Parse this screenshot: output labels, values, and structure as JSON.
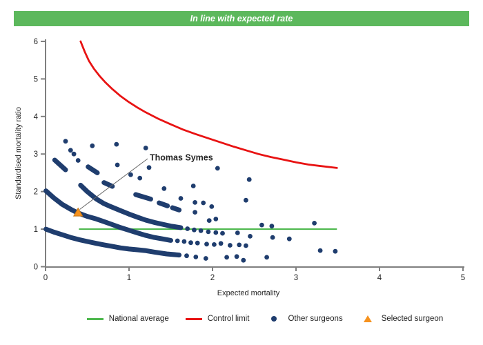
{
  "colors": {
    "banner_green": "#5cb85c",
    "green": "#4db84d",
    "red": "#e81313",
    "navy": "#1f3d6e",
    "orange": "#f6921e",
    "orange_border": "#c47413",
    "axis_gray": "#7f7f7f",
    "annotation_line": "#666666"
  },
  "legend": {
    "items": [
      {
        "label": "National average",
        "marker": "line",
        "color_key": "green"
      },
      {
        "label": "Control limit",
        "marker": "line",
        "color_key": "red"
      },
      {
        "label": "Other surgeons",
        "marker": "dot",
        "color_key": "navy"
      },
      {
        "label": "Selected surgeon",
        "marker": "triangle",
        "color_key": "orange"
      }
    ]
  },
  "chart_data": {
    "type": "scatter",
    "title": "In line with expected rate",
    "xlabel": "Expected mortality",
    "ylabel": "Standardised mortality ratio",
    "xlim": [
      0,
      5
    ],
    "ylim": [
      0,
      6
    ],
    "grid": false,
    "x_ticks": [
      "0",
      "1",
      "2",
      "3",
      "4",
      "5"
    ],
    "y_ticks": [
      "0",
      "1",
      "2",
      "3",
      "4",
      "5",
      "6"
    ],
    "national_average": {
      "y": 1.0,
      "x_start": 0.4,
      "x_end": 3.49
    },
    "control_limit": {
      "points": [
        [
          0.42,
          6.0
        ],
        [
          0.47,
          5.72
        ],
        [
          0.52,
          5.48
        ],
        [
          0.58,
          5.27
        ],
        [
          0.65,
          5.07
        ],
        [
          0.72,
          4.9
        ],
        [
          0.8,
          4.73
        ],
        [
          0.9,
          4.54
        ],
        [
          1.0,
          4.38
        ],
        [
          1.1,
          4.24
        ],
        [
          1.2,
          4.11
        ],
        [
          1.35,
          3.94
        ],
        [
          1.5,
          3.79
        ],
        [
          1.65,
          3.65
        ],
        [
          1.8,
          3.53
        ],
        [
          1.95,
          3.42
        ],
        [
          2.1,
          3.31
        ],
        [
          2.25,
          3.2
        ],
        [
          2.4,
          3.1
        ],
        [
          2.55,
          3.0
        ],
        [
          2.7,
          2.92
        ],
        [
          2.85,
          2.85
        ],
        [
          3.0,
          2.78
        ],
        [
          3.15,
          2.72
        ],
        [
          3.3,
          2.68
        ],
        [
          3.49,
          2.63
        ]
      ]
    },
    "surgeon_bands": [
      {
        "name": "band-upper",
        "points": [
          [
            0.42,
            2.17
          ],
          [
            0.5,
            2.0
          ],
          [
            0.61,
            1.8
          ],
          [
            0.7,
            1.68
          ],
          [
            0.78,
            1.6
          ],
          [
            0.9,
            1.49
          ],
          [
            1.0,
            1.4
          ],
          [
            1.11,
            1.31
          ],
          [
            1.2,
            1.24
          ],
          [
            1.3,
            1.18
          ],
          [
            1.4,
            1.13
          ],
          [
            1.5,
            1.08
          ],
          [
            1.62,
            1.04
          ]
        ]
      },
      {
        "name": "band-middle",
        "points": [
          [
            0.005,
            2.02
          ],
          [
            0.1,
            1.83
          ],
          [
            0.2,
            1.66
          ],
          [
            0.3,
            1.53
          ],
          [
            0.39,
            1.43
          ],
          [
            0.5,
            1.34
          ],
          [
            0.61,
            1.27
          ],
          [
            0.7,
            1.2
          ],
          [
            0.8,
            1.12
          ],
          [
            0.9,
            1.04
          ],
          [
            1.0,
            0.97
          ],
          [
            1.1,
            0.9
          ],
          [
            1.19,
            0.84
          ],
          [
            1.3,
            0.78
          ],
          [
            1.4,
            0.74
          ],
          [
            1.5,
            0.7
          ]
        ]
      },
      {
        "name": "band-lower",
        "points": [
          [
            0.005,
            1.0
          ],
          [
            0.1,
            0.92
          ],
          [
            0.2,
            0.85
          ],
          [
            0.3,
            0.78
          ],
          [
            0.4,
            0.72
          ],
          [
            0.5,
            0.67
          ],
          [
            0.61,
            0.62
          ],
          [
            0.7,
            0.58
          ],
          [
            0.8,
            0.54
          ],
          [
            0.9,
            0.5
          ],
          [
            1.0,
            0.47
          ],
          [
            1.1,
            0.45
          ],
          [
            1.19,
            0.43
          ],
          [
            1.3,
            0.39
          ],
          [
            1.45,
            0.34
          ],
          [
            1.6,
            0.31
          ]
        ]
      }
    ],
    "band_dashes": [
      [
        0.11,
        2.84,
        0.24,
        2.58
      ],
      [
        0.51,
        2.66,
        0.62,
        2.5
      ],
      [
        0.7,
        2.24,
        0.8,
        2.14
      ],
      [
        1.08,
        1.92,
        1.26,
        1.8
      ],
      [
        1.36,
        1.7,
        1.46,
        1.62
      ],
      [
        1.52,
        1.57,
        1.6,
        1.51
      ]
    ],
    "other_surgeons": [
      [
        0.24,
        3.34
      ],
      [
        0.3,
        3.1
      ],
      [
        0.34,
        3.0
      ],
      [
        0.39,
        2.83
      ],
      [
        0.56,
        3.22
      ],
      [
        0.85,
        3.26
      ],
      [
        1.2,
        3.16
      ],
      [
        0.86,
        2.71
      ],
      [
        1.02,
        2.45
      ],
      [
        1.13,
        2.36
      ],
      [
        1.24,
        2.64
      ],
      [
        1.42,
        2.08
      ],
      [
        1.77,
        2.15
      ],
      [
        2.06,
        2.62
      ],
      [
        2.44,
        2.32
      ],
      [
        1.62,
        1.82
      ],
      [
        1.79,
        1.71
      ],
      [
        1.89,
        1.7
      ],
      [
        1.99,
        1.6
      ],
      [
        2.4,
        1.77
      ],
      [
        1.79,
        1.45
      ],
      [
        1.96,
        1.23
      ],
      [
        2.04,
        1.27
      ],
      [
        2.59,
        1.11
      ],
      [
        2.71,
        1.08
      ],
      [
        3.22,
        1.16
      ],
      [
        1.7,
        1.01
      ],
      [
        1.78,
        0.98
      ],
      [
        1.86,
        0.96
      ],
      [
        1.95,
        0.93
      ],
      [
        2.04,
        0.91
      ],
      [
        2.12,
        0.89
      ],
      [
        2.3,
        0.9
      ],
      [
        2.45,
        0.81
      ],
      [
        2.72,
        0.78
      ],
      [
        2.92,
        0.74
      ],
      [
        1.58,
        0.69
      ],
      [
        1.66,
        0.67
      ],
      [
        1.74,
        0.64
      ],
      [
        1.82,
        0.63
      ],
      [
        1.93,
        0.6
      ],
      [
        2.02,
        0.59
      ],
      [
        2.1,
        0.62
      ],
      [
        2.21,
        0.57
      ],
      [
        2.32,
        0.58
      ],
      [
        2.4,
        0.56
      ],
      [
        1.69,
        0.29
      ],
      [
        1.8,
        0.26
      ],
      [
        1.92,
        0.22
      ],
      [
        2.17,
        0.25
      ],
      [
        2.29,
        0.27
      ],
      [
        2.37,
        0.17
      ],
      [
        2.65,
        0.25
      ],
      [
        3.29,
        0.43
      ],
      [
        3.47,
        0.41
      ]
    ],
    "selected_surgeon": {
      "name": "Thomas Symes",
      "x": 0.39,
      "y": 1.44
    }
  }
}
